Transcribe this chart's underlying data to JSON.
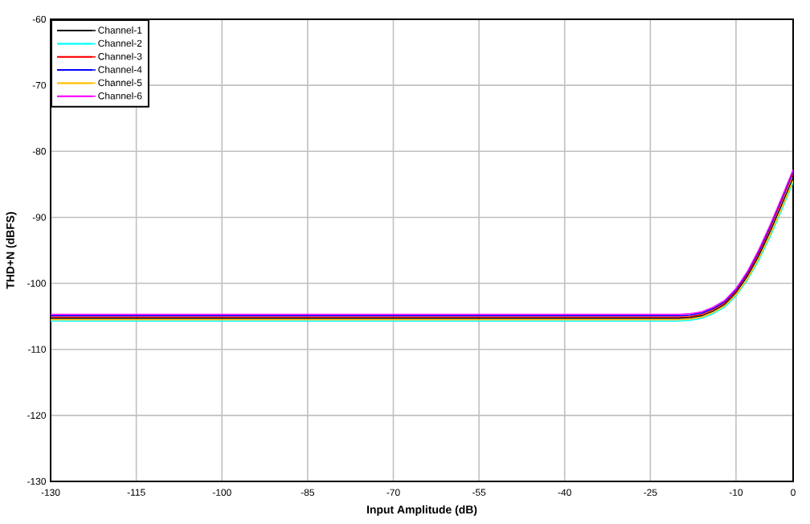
{
  "chart_data": {
    "type": "line",
    "xlabel": "Input Amplitude (dB)",
    "ylabel": "THD+N (dBFS)",
    "x": [
      -130,
      -120,
      -110,
      -100,
      -90,
      -80,
      -70,
      -60,
      -50,
      -40,
      -30,
      -20,
      -18,
      -16,
      -14,
      -12,
      -10,
      -8,
      -6,
      -4,
      -2,
      0
    ],
    "series": [
      {
        "name": "Channel-1",
        "color": "#000000",
        "values": [
          -105.3,
          -105.3,
          -105.3,
          -105.3,
          -105.3,
          -105.3,
          -105.3,
          -105.3,
          -105.3,
          -105.3,
          -105.3,
          -105.3,
          -105.2,
          -104.9,
          -104.2,
          -103.2,
          -101.4,
          -98.9,
          -95.8,
          -92.1,
          -88.1,
          -84.0
        ]
      },
      {
        "name": "Channel-2",
        "color": "#00ffff",
        "values": [
          -105.7,
          -105.7,
          -105.7,
          -105.7,
          -105.7,
          -105.7,
          -105.7,
          -105.7,
          -105.7,
          -105.7,
          -105.7,
          -105.7,
          -105.6,
          -105.3,
          -104.6,
          -103.6,
          -101.9,
          -99.5,
          -96.5,
          -92.9,
          -88.9,
          -84.7
        ]
      },
      {
        "name": "Channel-3",
        "color": "#ff0000",
        "values": [
          -105.1,
          -105.1,
          -105.1,
          -105.1,
          -105.1,
          -105.1,
          -105.1,
          -105.1,
          -105.1,
          -105.1,
          -105.1,
          -105.1,
          -105.0,
          -104.7,
          -104.0,
          -103.0,
          -101.2,
          -98.6,
          -95.4,
          -91.6,
          -87.5,
          -83.3
        ]
      },
      {
        "name": "Channel-4",
        "color": "#0000ff",
        "values": [
          -104.9,
          -104.9,
          -104.9,
          -104.9,
          -104.9,
          -104.9,
          -104.9,
          -104.9,
          -104.9,
          -104.9,
          -104.9,
          -104.9,
          -104.8,
          -104.5,
          -103.8,
          -102.8,
          -101.0,
          -98.4,
          -95.1,
          -91.3,
          -87.2,
          -83.0
        ]
      },
      {
        "name": "Channel-5",
        "color": "#ffc000",
        "values": [
          -105.5,
          -105.5,
          -105.5,
          -105.5,
          -105.5,
          -105.5,
          -105.5,
          -105.5,
          -105.5,
          -105.5,
          -105.5,
          -105.5,
          -105.4,
          -105.1,
          -104.4,
          -103.4,
          -101.7,
          -99.3,
          -96.2,
          -92.6,
          -88.6,
          -84.4
        ]
      },
      {
        "name": "Channel-6",
        "color": "#ff00ff",
        "values": [
          -104.7,
          -104.7,
          -104.7,
          -104.7,
          -104.7,
          -104.7,
          -104.7,
          -104.7,
          -104.7,
          -104.7,
          -104.7,
          -104.7,
          -104.6,
          -104.3,
          -103.6,
          -102.6,
          -100.8,
          -98.2,
          -94.9,
          -91.1,
          -87.0,
          -82.8
        ]
      }
    ],
    "xlim": [
      -130,
      0
    ],
    "ylim": [
      -130,
      -60
    ],
    "xticks": [
      -130,
      -115,
      -100,
      -85,
      -70,
      -55,
      -40,
      -25,
      -10,
      0
    ],
    "yticks": [
      -130,
      -120,
      -110,
      -100,
      -90,
      -80,
      -70,
      -60
    ],
    "grid": true,
    "legend": "top left"
  }
}
